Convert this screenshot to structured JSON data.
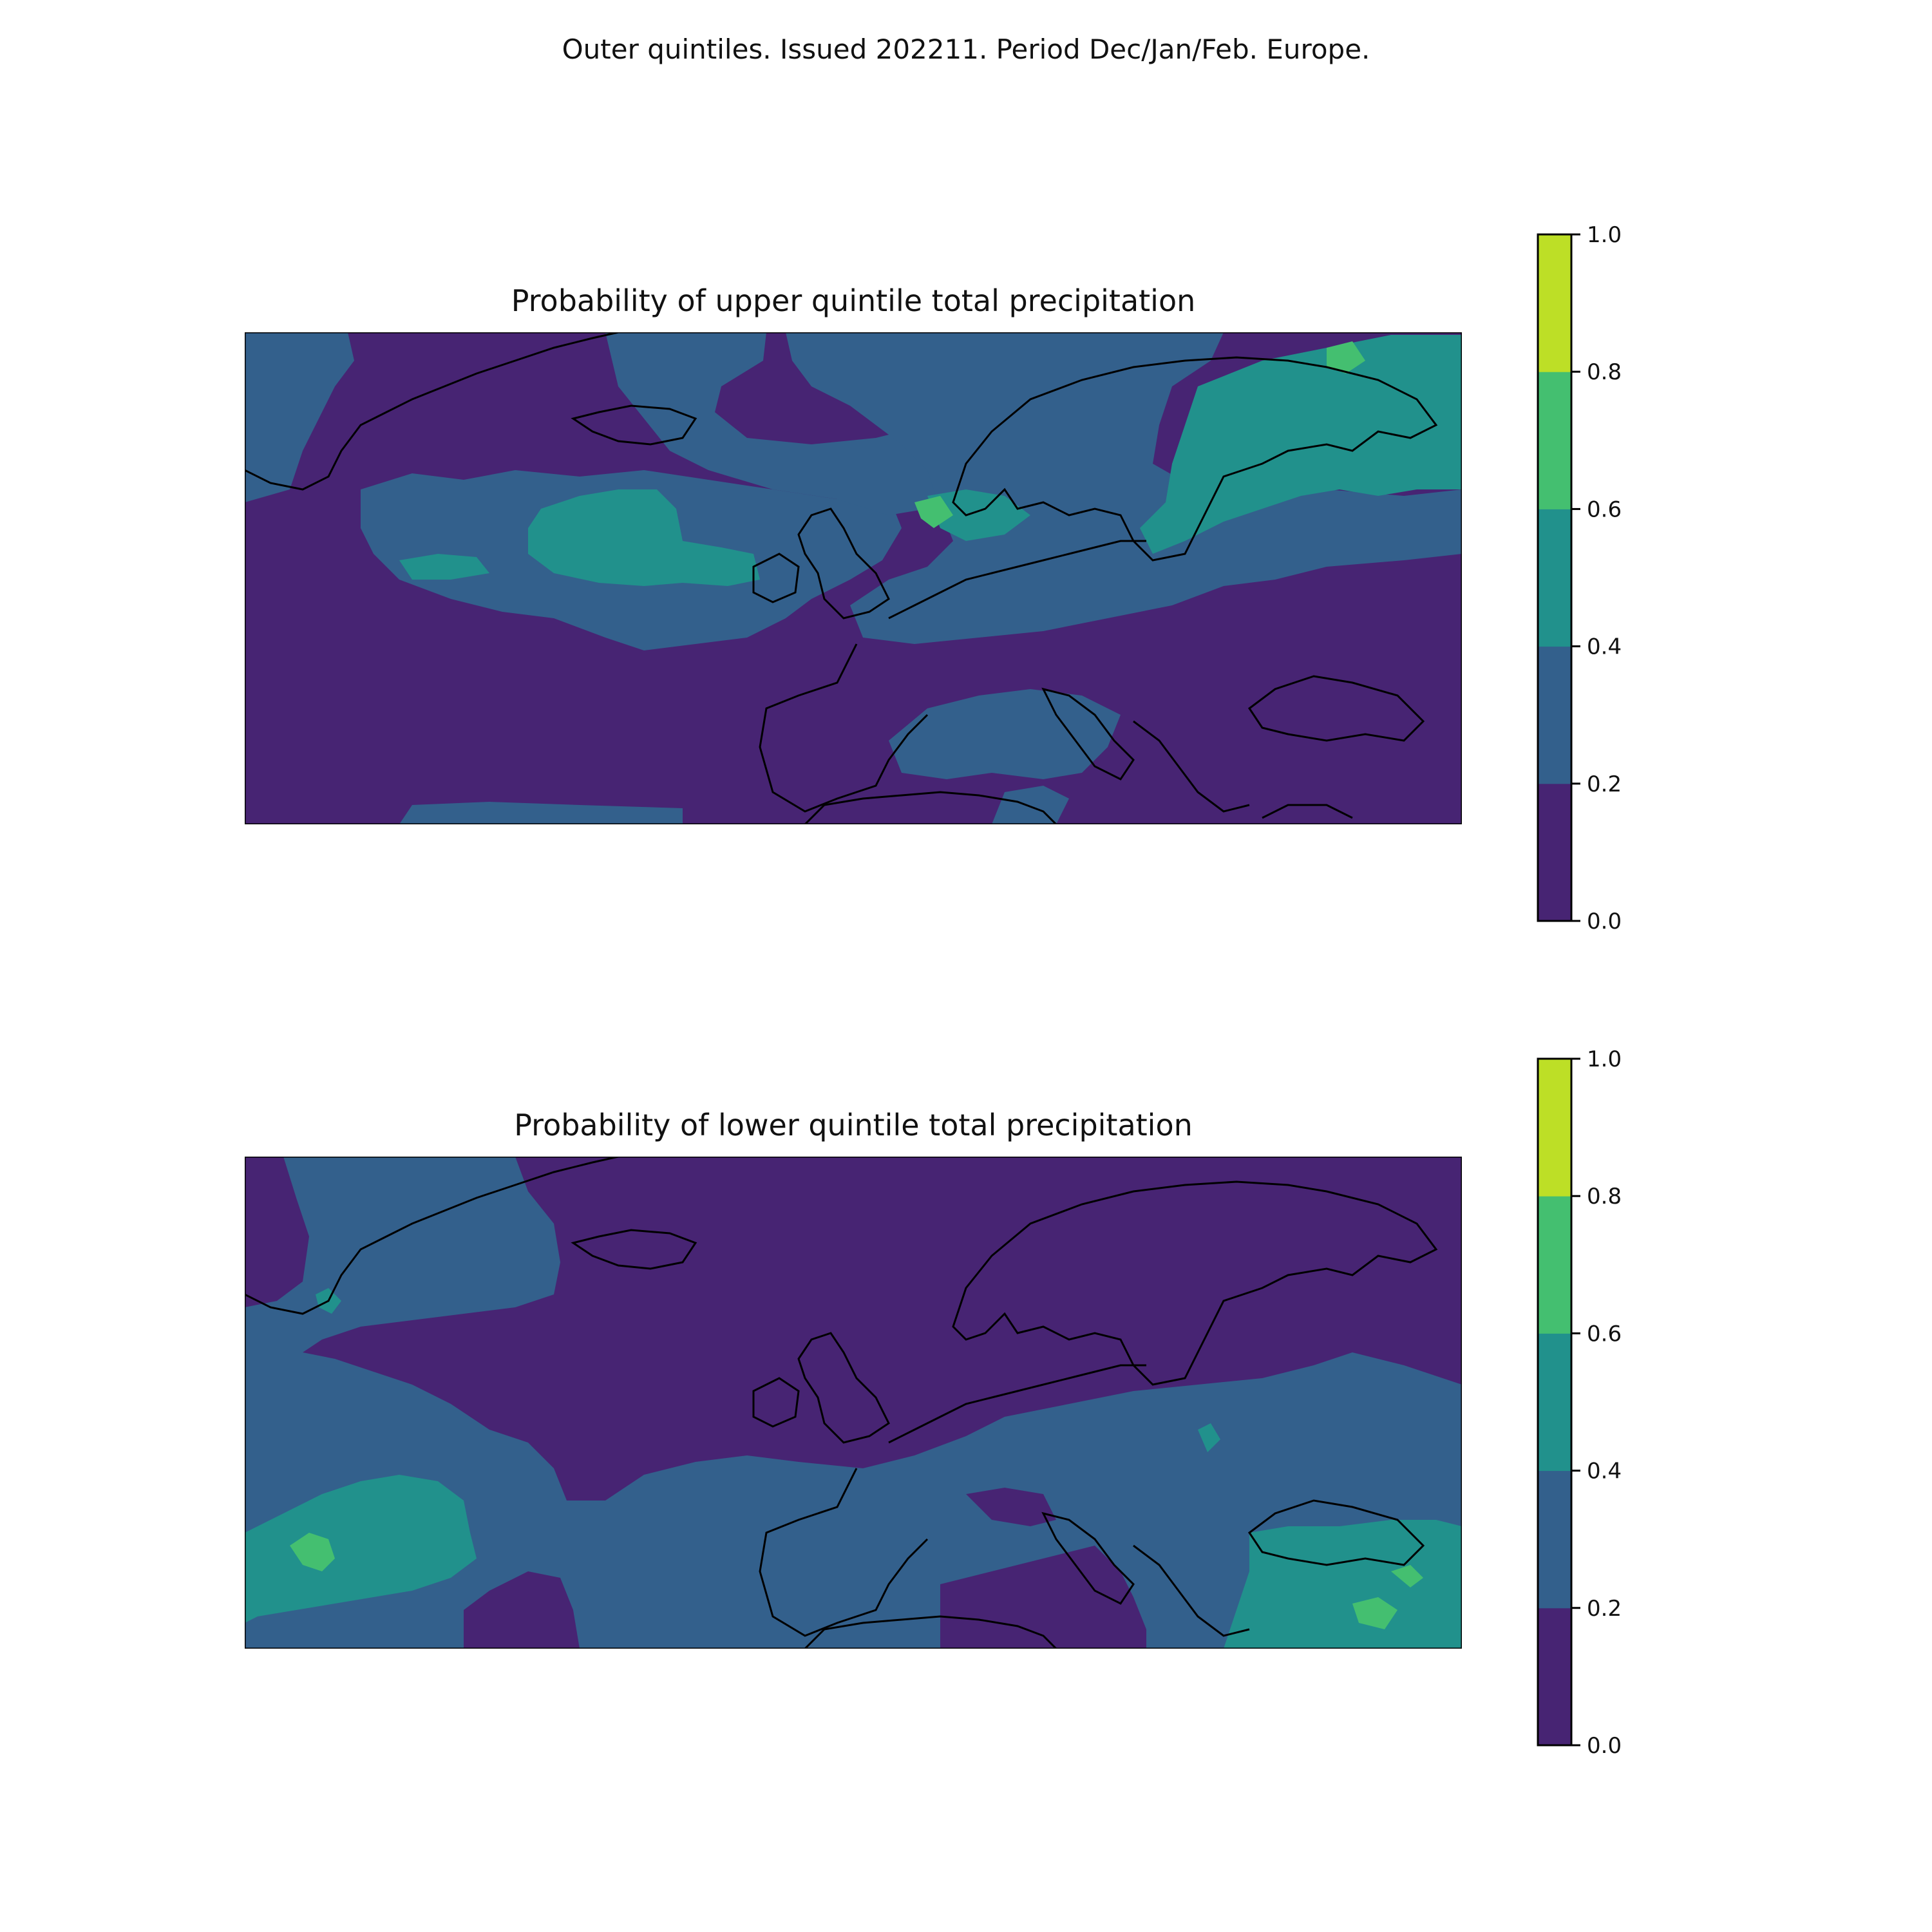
{
  "figure": {
    "title": "Outer quintiles. Issued 202211. Period Dec/Jan/Feb. Europe."
  },
  "colormap": {
    "levels": [
      0.0,
      0.2,
      0.4,
      0.6,
      0.8,
      1.0
    ],
    "colors": [
      "#472473",
      "#33608c",
      "#21918c",
      "#44bf70",
      "#bddf26"
    ],
    "tick_labels": [
      "0.0",
      "0.2",
      "0.4",
      "0.6",
      "0.8",
      "1.0"
    ]
  },
  "panels": [
    {
      "title": "Probability of upper quintile total precipitation",
      "background_level_color": "#472473"
    },
    {
      "title": "Probability of lower quintile total precipitation",
      "background_level_color": "#33608c"
    }
  ]
}
